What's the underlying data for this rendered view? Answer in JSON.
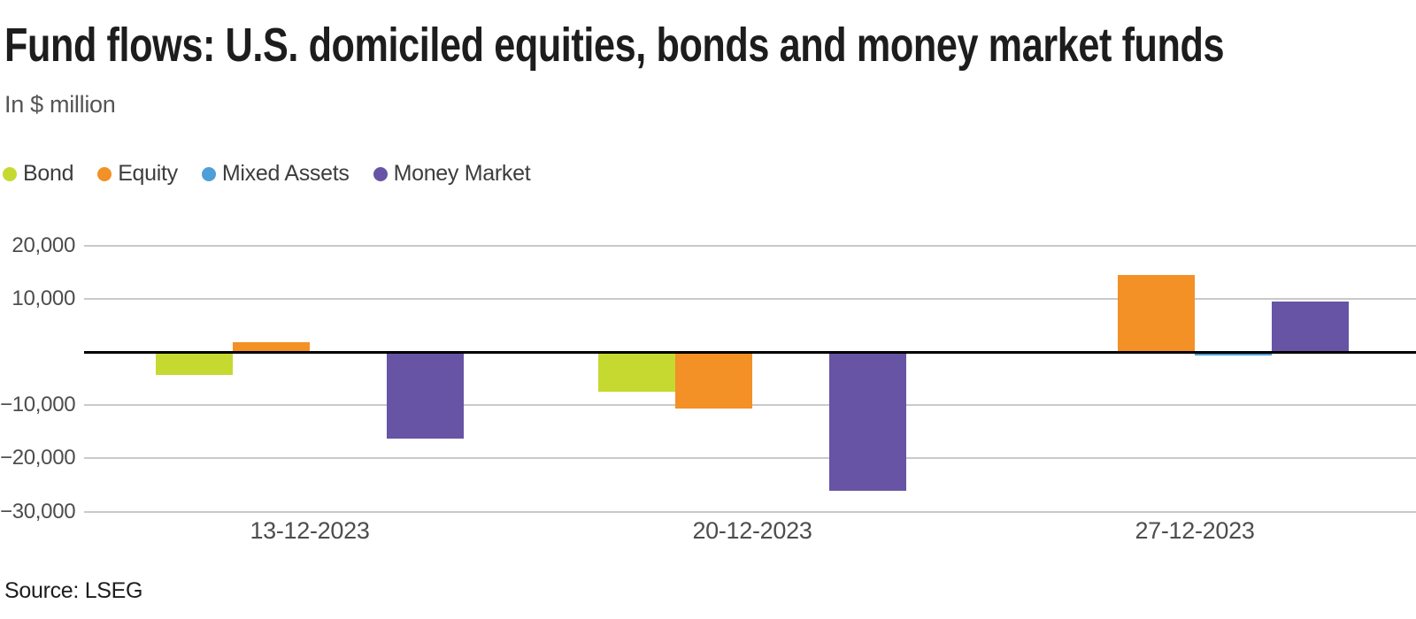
{
  "header": {
    "title": "Fund flows: U.S. domiciled equities, bonds and money market funds",
    "subtitle": "In $ million"
  },
  "footer": {
    "source": "Source: LSEG"
  },
  "colors": {
    "bond": "#c6d930",
    "equity": "#f39026",
    "mixed_assets": "#4d9fd6",
    "money_market": "#6754a4",
    "gridline": "#c9c9c9",
    "zero_line": "#000000",
    "title_text": "#1d1d1d",
    "axis_text": "#4d4d4d"
  },
  "chart_data": {
    "type": "bar",
    "title": "Fund flows: U.S. domiciled equities, bonds and money market funds",
    "ylabel": "In $ million",
    "categories": [
      "13-12-2023",
      "20-12-2023",
      "27-12-2023"
    ],
    "series": [
      {
        "name": "Bond",
        "color_key": "bond",
        "values": [
          -4400,
          -7400,
          100
        ]
      },
      {
        "name": "Equity",
        "color_key": "equity",
        "values": [
          1900,
          -10600,
          14500
        ]
      },
      {
        "name": "Mixed Assets",
        "color_key": "mixed_assets",
        "values": [
          -300,
          -400,
          -600
        ]
      },
      {
        "name": "Money Market",
        "color_key": "money_market",
        "values": [
          -16300,
          -26100,
          9500
        ]
      }
    ],
    "ylim": [
      -30000,
      20000
    ],
    "ytick_interval": 10000,
    "yticks": [
      {
        "value": 20000,
        "label": "20,000"
      },
      {
        "value": 10000,
        "label": "10,000"
      },
      {
        "value": -10000,
        "label": "−10,000"
      },
      {
        "value": -20000,
        "label": "−20,000"
      },
      {
        "value": -30000,
        "label": "−30,000"
      }
    ],
    "grid": true,
    "legend_position": "top-left",
    "zero_baseline": true
  }
}
